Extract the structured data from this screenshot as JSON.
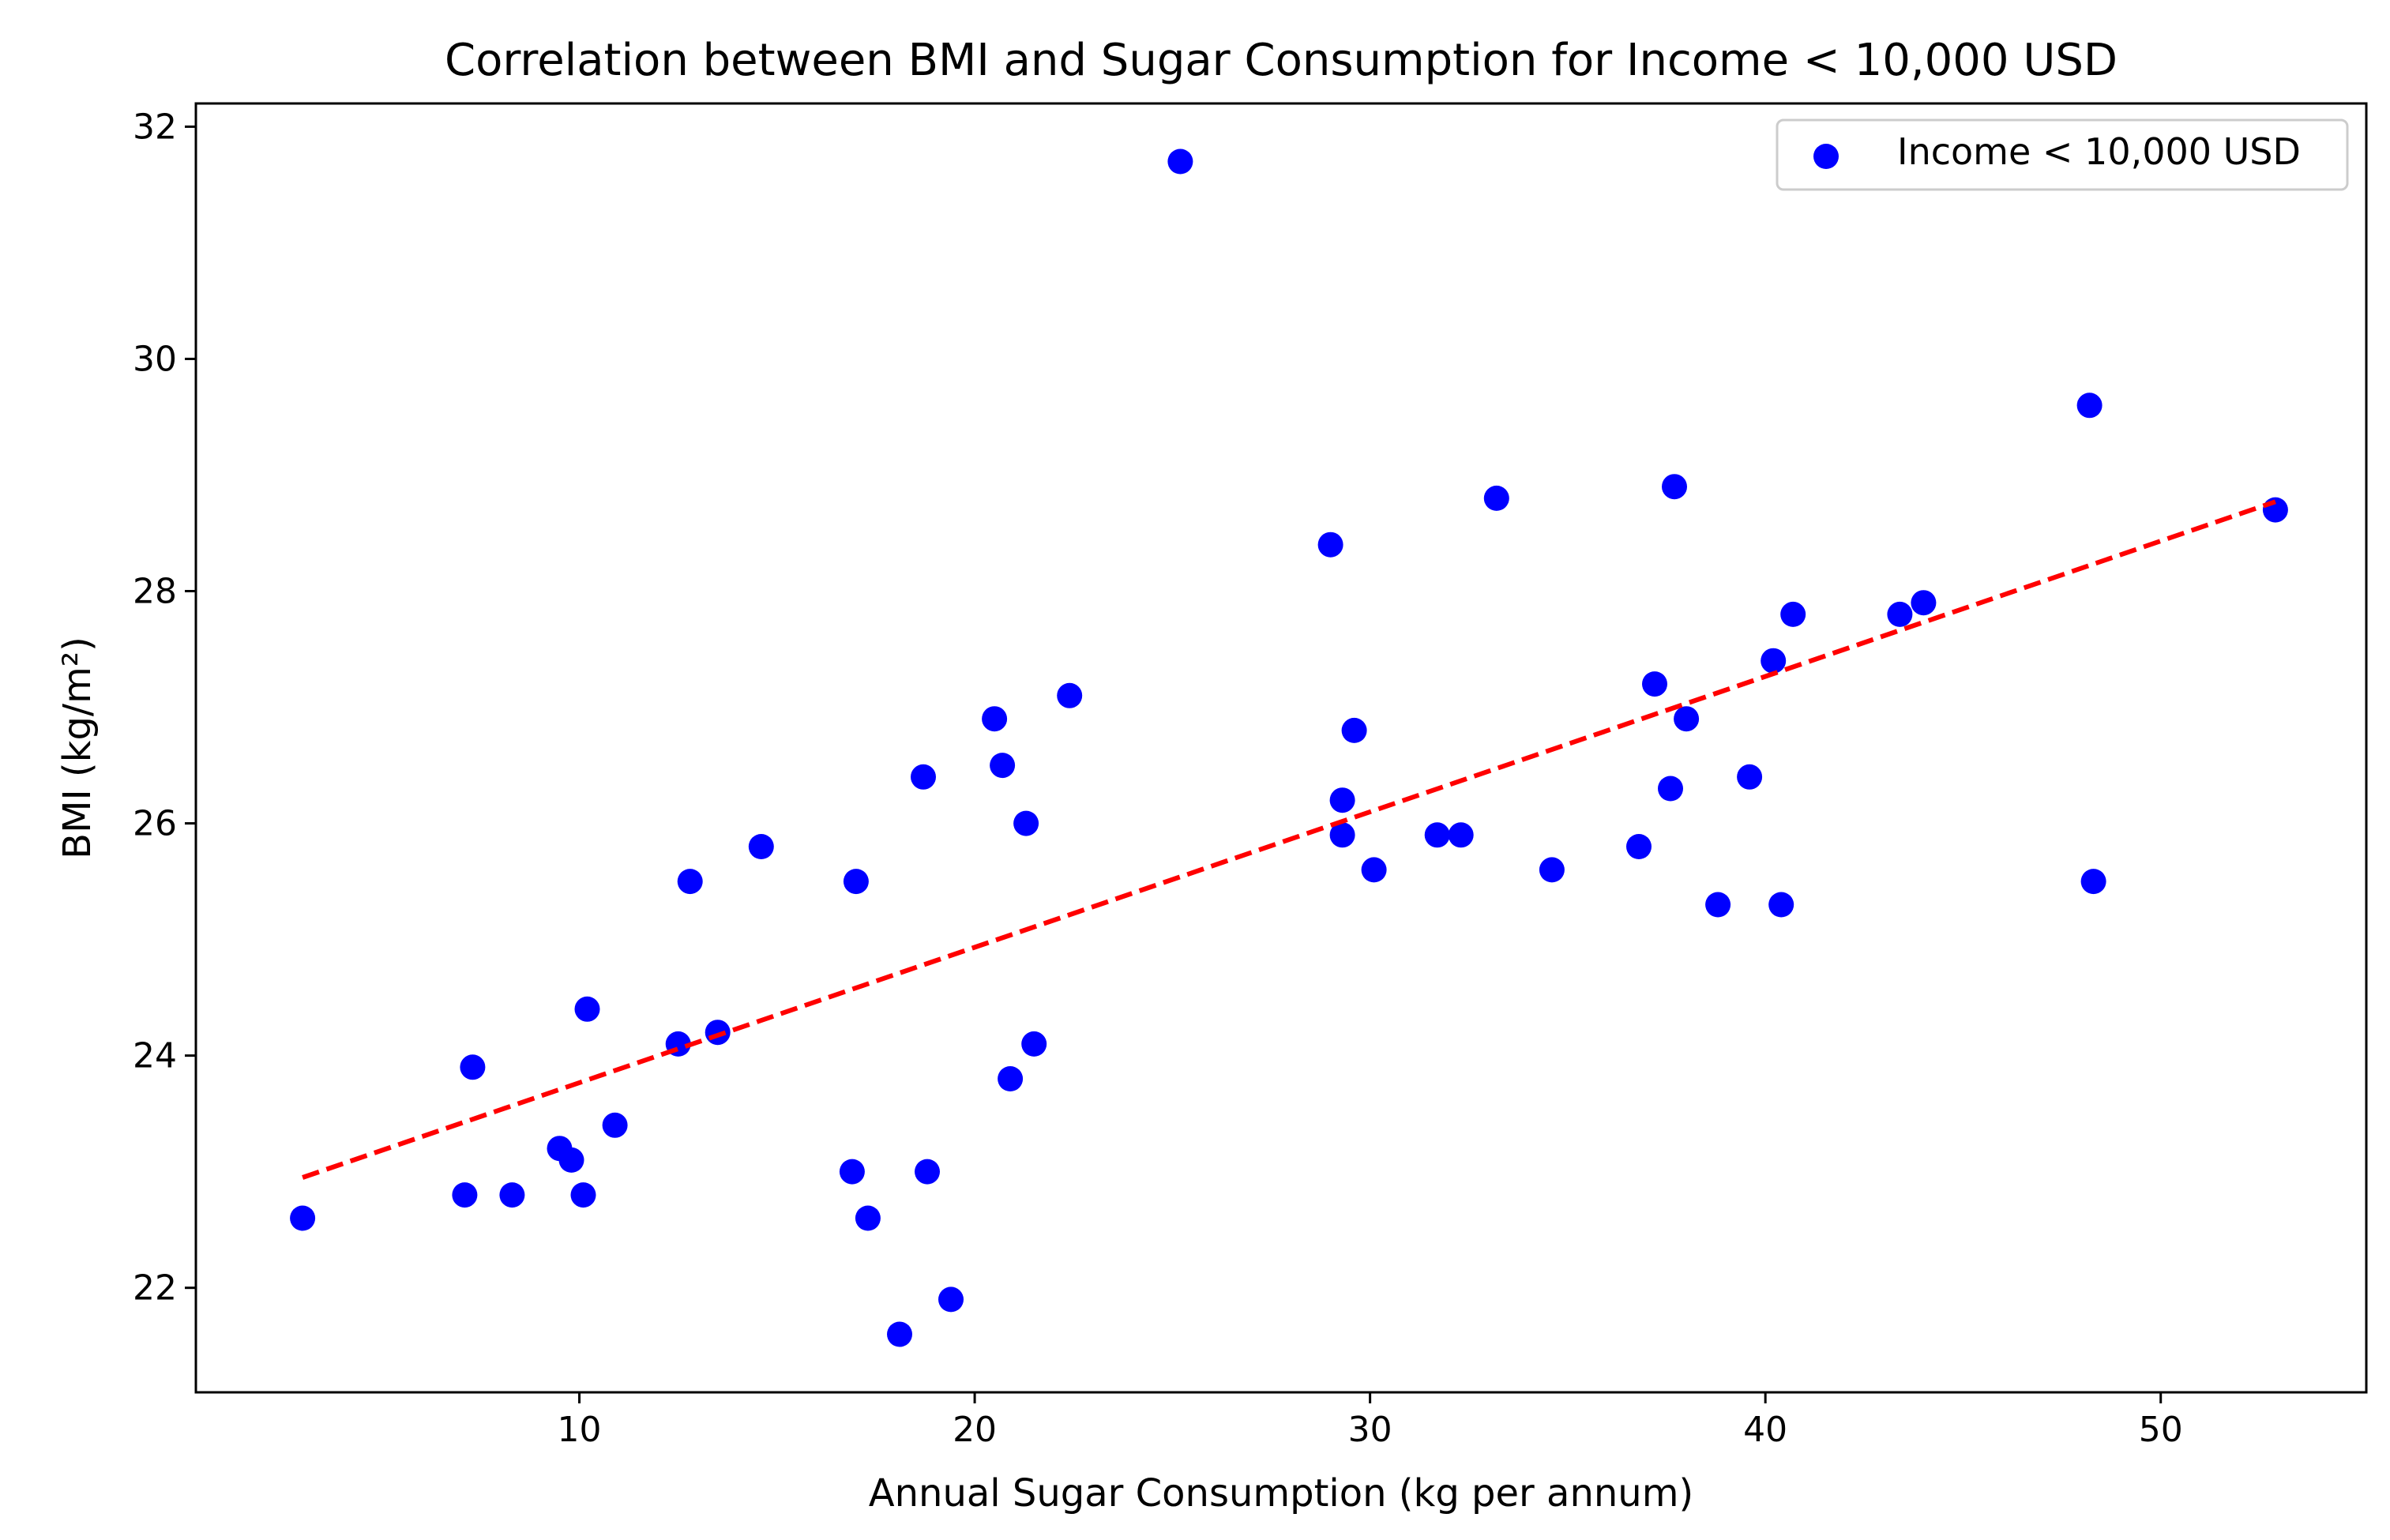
{
  "chart_data": {
    "type": "scatter",
    "title": "Correlation between BMI and Sugar Consumption for Income < 10,000 USD",
    "xlabel": "Annual Sugar Consumption (kg per annum)",
    "ylabel": "BMI (kg/m²)",
    "xlim": [
      0.3,
      55.2
    ],
    "ylim": [
      21.1,
      32.2
    ],
    "xticks": [
      10,
      20,
      30,
      40,
      50
    ],
    "yticks": [
      22,
      24,
      26,
      28,
      30,
      32
    ],
    "grid": false,
    "legend_position": "top-right",
    "colors": {
      "points": "#0000ff",
      "trendline": "#ff0000",
      "legend_border": "#cccccc"
    },
    "series": [
      {
        "name": "Income < 10,000 USD",
        "kind": "scatter",
        "x": [
          3.0,
          7.1,
          7.3,
          8.3,
          9.5,
          9.8,
          10.1,
          10.2,
          10.9,
          12.5,
          12.8,
          13.5,
          14.6,
          16.9,
          17.0,
          17.3,
          18.1,
          18.7,
          18.8,
          19.4,
          20.5,
          20.7,
          20.9,
          21.3,
          21.5,
          22.4,
          25.2,
          29.0,
          29.3,
          29.3,
          29.6,
          30.1,
          31.7,
          32.3,
          33.2,
          34.6,
          36.8,
          37.2,
          37.6,
          37.7,
          38.0,
          38.8,
          39.6,
          40.2,
          40.4,
          40.7,
          43.4,
          44.0,
          48.2,
          48.3,
          52.9
        ],
        "y": [
          22.6,
          22.8,
          23.9,
          22.8,
          23.2,
          23.1,
          22.8,
          24.4,
          23.4,
          24.1,
          25.5,
          24.2,
          25.8,
          23.0,
          25.5,
          22.6,
          21.6,
          26.4,
          23.0,
          21.9,
          26.9,
          26.5,
          23.8,
          26.0,
          24.1,
          27.1,
          31.7,
          28.4,
          26.2,
          25.9,
          26.8,
          25.6,
          25.9,
          25.9,
          28.8,
          25.6,
          25.8,
          27.2,
          26.3,
          28.9,
          26.9,
          25.3,
          26.4,
          27.4,
          25.3,
          27.8,
          27.8,
          27.9,
          29.6,
          25.5,
          28.7
        ]
      },
      {
        "name": "Trend line",
        "kind": "line",
        "style": "dashed",
        "x": [
          3.0,
          52.9
        ],
        "y": [
          22.95,
          28.77
        ]
      }
    ]
  }
}
